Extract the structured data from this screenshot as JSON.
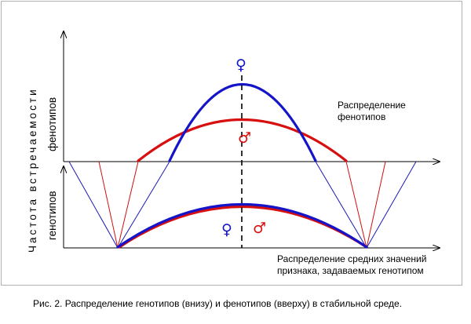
{
  "diagram": {
    "y_label_main": "Частота встречаемости",
    "y_label_top": "фенотипов",
    "y_label_bottom": "генотипов",
    "top_label_line1": "Распределение",
    "top_label_line2": "фенотипов",
    "bottom_label_line1": "Распределение средних значений",
    "bottom_label_line2": "признака, задаваемых генотипом",
    "female_symbol": "♀",
    "male_symbol": "♂",
    "caption": "Рис. 2. Распределение генотипов (внизу) и фенотипов (вверху) в стабильной среде.",
    "colors": {
      "female": "#1414c8",
      "male": "#d80f0f",
      "axis": "#000000"
    }
  }
}
